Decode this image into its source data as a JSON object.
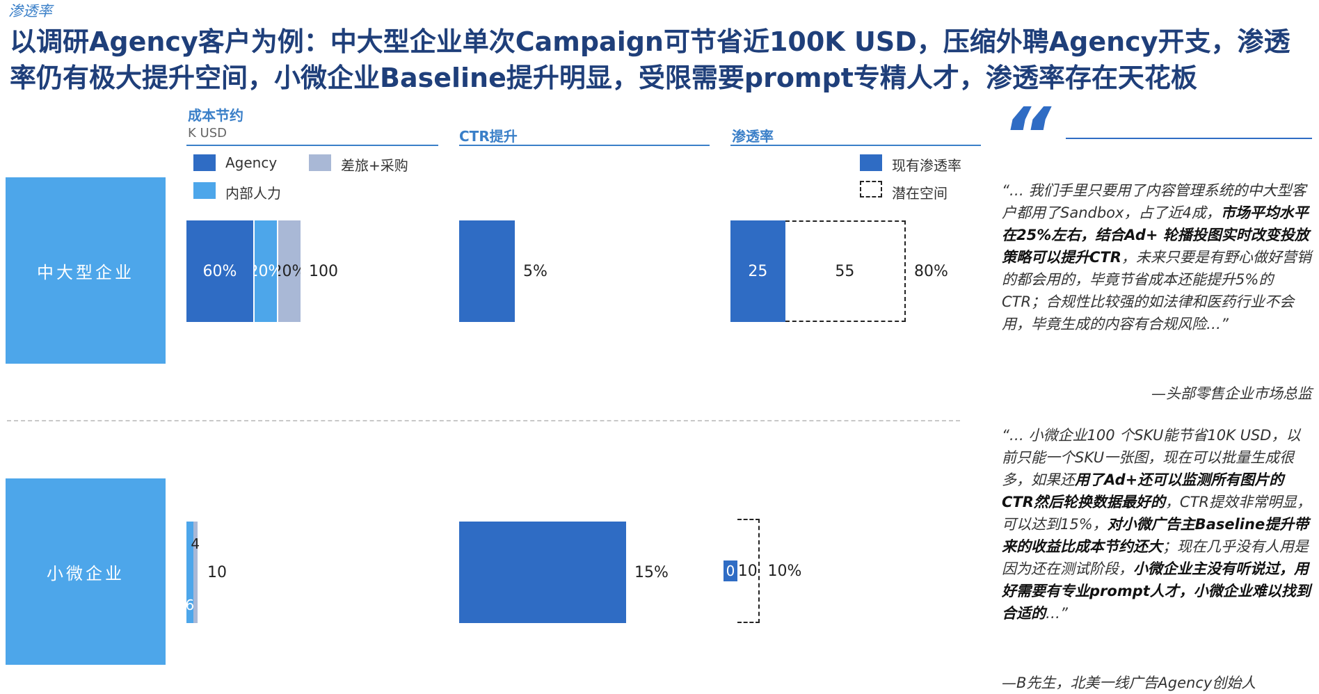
{
  "header": {
    "tag": "渗透率",
    "title": "以调研Agency客户为例：中大型企业单次Campaign可节省近100K USD，压缩外聘Agency开支，渗透率仍有极大提升空间，小微企业Baseline提升明显，受限需要prompt专精人才，渗透率存在天花板"
  },
  "sections": {
    "cost": {
      "title": "成本节约",
      "unit": "K USD"
    },
    "ctr": {
      "title": "CTR提升"
    },
    "penetration": {
      "title": "渗透率"
    }
  },
  "legend_cost": [
    {
      "label": "Agency",
      "color": "#2f6cc4"
    },
    {
      "label": "差旅+采购",
      "color": "#a9b8d6"
    },
    {
      "label": "内部人力",
      "color": "#4da6ea"
    }
  ],
  "legend_pen": [
    {
      "label": "现有渗透率",
      "color": "#2f6cc4"
    },
    {
      "label": "潜在空间",
      "color": "#ffffff"
    }
  ],
  "rows": [
    {
      "label": "中大型企业"
    },
    {
      "label": "小微企业"
    }
  ],
  "chart_data": [
    {
      "type": "bar",
      "title": "成本节约",
      "ylabel": "K USD",
      "categories": [
        "中大型企业",
        "小微企业"
      ],
      "series": [
        {
          "name": "Agency",
          "values": [
            60,
            0
          ],
          "labels": [
            "60%",
            ""
          ]
        },
        {
          "name": "内部人力",
          "values": [
            20,
            6
          ],
          "labels": [
            "20%",
            "6"
          ]
        },
        {
          "name": "差旅+采购",
          "values": [
            20,
            4
          ],
          "labels": [
            "20%",
            "4"
          ]
        }
      ],
      "totals": [
        "100",
        "10"
      ]
    },
    {
      "type": "bar",
      "title": "CTR提升",
      "categories": [
        "中大型企业",
        "小微企业"
      ],
      "values": [
        5,
        15
      ],
      "labels": [
        "5%",
        "15%"
      ]
    },
    {
      "type": "bar",
      "title": "渗透率",
      "categories": [
        "中大型企业",
        "小微企业"
      ],
      "series": [
        {
          "name": "现有渗透率",
          "values": [
            25,
            0
          ],
          "labels": [
            "25",
            "0"
          ]
        },
        {
          "name": "潜在空间",
          "values": [
            55,
            10
          ],
          "labels": [
            "55",
            "10"
          ]
        }
      ],
      "totals": [
        "80%",
        "10%"
      ]
    }
  ],
  "quotes": [
    {
      "segments": [
        {
          "text": "“… 我们手里只要用了内容管理系统的中大型客户都用了Sandbox，占了近4成，",
          "bold": false
        },
        {
          "text": "市场平均水平在25%左右，结合Ad+ 轮播投图实时改变投放策略可以提升CTR",
          "bold": true
        },
        {
          "text": "，未来只要是有野心做好营销的都会用的，毕竟节省成本还能提升5%的CTR；合规性比较强的如法律和医药行业不会用，毕竟生成的内容有合规风险…”",
          "bold": false
        }
      ],
      "attribution": "—头部零售企业市场总监"
    },
    {
      "segments": [
        {
          "text": "“… 小微企业100 个SKU能节省10K USD，以前只能一个SKU一张图，现在可以批量生成很多，如果还",
          "bold": false
        },
        {
          "text": "用了Ad+还可以监测所有图片的CTR然后轮换数据最好的",
          "bold": true
        },
        {
          "text": "，CTR提效非常明显，可以达到15%，",
          "bold": false
        },
        {
          "text": "对小微广告主Baseline提升带来的收益比成本节约还大",
          "bold": true
        },
        {
          "text": "；现在几乎没有人用是因为还在测试阶段，",
          "bold": false
        },
        {
          "text": "小微企业主没有听说过，用好需要有专业prompt人才，小微企业难以找到合适的",
          "bold": true
        },
        {
          "text": "…”",
          "bold": false
        }
      ],
      "attribution": "—B先生，北美一线广告Agency创始人"
    }
  ]
}
